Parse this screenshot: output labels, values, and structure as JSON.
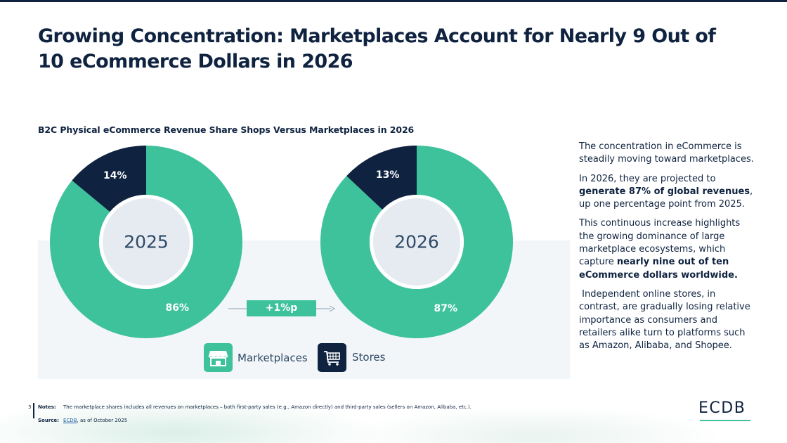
{
  "title": "Growing Concentration: Marketplaces Account for Nearly 9 Out of 10 eCommerce Dollars in 2026",
  "colors": {
    "marketplaces": "#3dc29c",
    "stores": "#0f2340",
    "navy": "#0f2340",
    "panel": "#f3f6f9"
  },
  "chart_data": {
    "type": "pie",
    "title": "B2C Physical eCommerce Revenue Share Shops Versus Marketplaces in 2026",
    "legend_position": "bottom",
    "charts": [
      {
        "year": "2025",
        "slices": [
          {
            "name": "Marketplaces",
            "value": 86,
            "label": "86%"
          },
          {
            "name": "Stores",
            "value": 14,
            "label": "14%"
          }
        ]
      },
      {
        "year": "2026",
        "slices": [
          {
            "name": "Marketplaces",
            "value": 87,
            "label": "87%"
          },
          {
            "name": "Stores",
            "value": 13,
            "label": "13%"
          }
        ]
      }
    ],
    "change_label": "+1%p",
    "legend": [
      {
        "name": "Marketplaces",
        "icon": "storefront-icon"
      },
      {
        "name": "Stores",
        "icon": "shopping-cart-icon"
      }
    ]
  },
  "commentary": {
    "p1": "The concentration in eCommerce is steadily moving toward marketplaces.",
    "p2_a": "In 2026, they are projected to ",
    "p2_b": "generate 87% of global revenues",
    "p2_c": ", up one percentage point from 2025.",
    "p3_a": "This continuous increase highlights the growing dominance of large marketplace ecosystems, which capture ",
    "p3_b": "nearly nine out of ten eCommerce dollars worldwide.",
    "p4": " Independent online stores, in contrast, are gradually losing relative importance as consumers and retailers alike turn to platforms such as Amazon, Alibaba, and Shopee."
  },
  "footer": {
    "page_number": "3",
    "notes_label": "Notes:",
    "notes_text": "The marketplace shares includes all revenues on marketplaces – both first-party sales (e.g., Amazon directly) and third-party sales (sellers on Amazon, Alibaba, etc.).",
    "source_label": "Source:",
    "source_link": "ECDB",
    "source_rest": ", as of October 2025"
  },
  "logo": "ECDB"
}
